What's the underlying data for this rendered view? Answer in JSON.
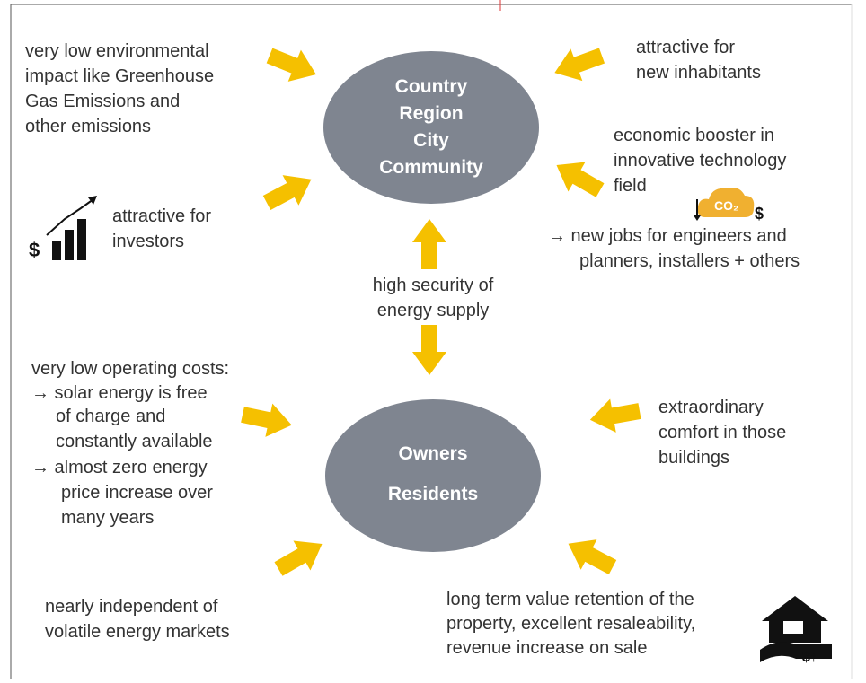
{
  "hubs": [
    {
      "lines": [
        "Country",
        "Region",
        "City",
        "Community"
      ]
    },
    {
      "lines": [
        "Owners",
        "Residents"
      ]
    }
  ],
  "notes": [
    {
      "lines": [
        "very low environmental",
        "impact like Greenhouse",
        "Gas Emissions and",
        "other emissions"
      ]
    },
    {
      "lines": [
        "attractive for",
        "new inhabitants"
      ]
    },
    {
      "lines": [
        "attractive for",
        "investors"
      ]
    },
    {
      "lines": [
        "economic booster in",
        "innovative technology",
        "field"
      ]
    },
    {
      "lines": [
        "→  new jobs for engineers and",
        "planners, installers + others"
      ]
    },
    {
      "lines": [
        "high security of",
        "energy supply"
      ]
    },
    {
      "lines": [
        "very low operating costs:",
        "→ solar energy is free",
        "of charge and",
        "constantly available",
        "→ almost zero energy",
        "price increase over",
        "many years"
      ]
    },
    {
      "lines": [
        "extraordinary",
        "comfort in those",
        "buildings"
      ]
    },
    {
      "lines": [
        "nearly independent of",
        "volatile energy markets"
      ]
    },
    {
      "lines": [
        "long term value retention of the",
        "property, excellent resaleability,",
        "revenue increase on sale"
      ]
    }
  ],
  "icons": {
    "investor": "$",
    "co2": "CO₂",
    "co2_money": "$",
    "house": "$↑"
  }
}
